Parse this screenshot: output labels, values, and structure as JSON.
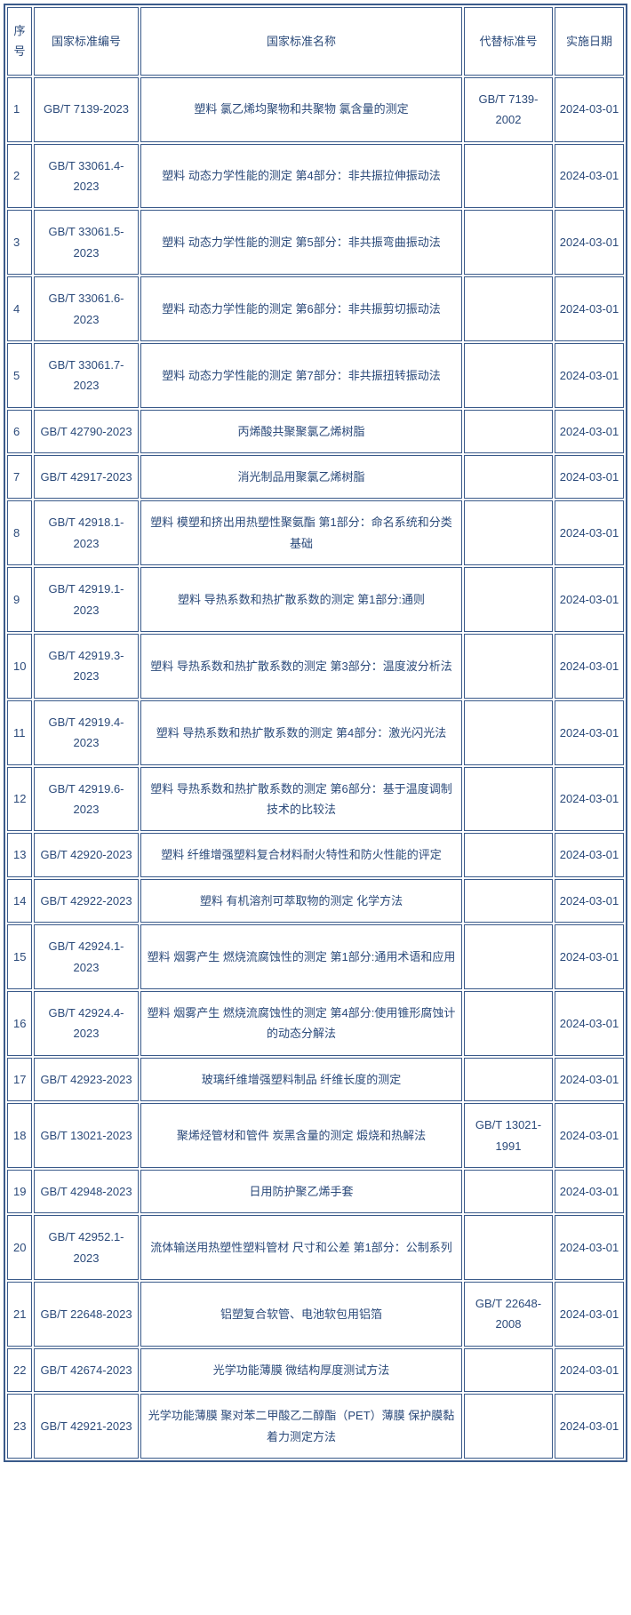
{
  "table": {
    "headers": {
      "seq": "序号",
      "code": "国家标准编号",
      "name": "国家标准名称",
      "replace": "代替标准号",
      "date": "实施日期"
    },
    "rows": [
      {
        "seq": "1",
        "code": "GB/T 7139-2023",
        "name": "塑料 氯乙烯均聚物和共聚物 氯含量的测定",
        "replace": "GB/T 7139-2002",
        "date": "2024-03-01"
      },
      {
        "seq": "2",
        "code": "GB/T 33061.4-2023",
        "name": "塑料 动态力学性能的测定 第4部分：非共振拉伸振动法",
        "replace": "",
        "date": "2024-03-01"
      },
      {
        "seq": "3",
        "code": "GB/T 33061.5-2023",
        "name": "塑料 动态力学性能的测定 第5部分：非共振弯曲振动法",
        "replace": "",
        "date": "2024-03-01"
      },
      {
        "seq": "4",
        "code": "GB/T 33061.6-2023",
        "name": "塑料 动态力学性能的测定 第6部分：非共振剪切振动法",
        "replace": "",
        "date": "2024-03-01"
      },
      {
        "seq": "5",
        "code": "GB/T 33061.7-2023",
        "name": "塑料 动态力学性能的测定 第7部分：非共振扭转振动法",
        "replace": "",
        "date": "2024-03-01"
      },
      {
        "seq": "6",
        "code": "GB/T 42790-2023",
        "name": "丙烯酸共聚聚氯乙烯树脂",
        "replace": "",
        "date": "2024-03-01"
      },
      {
        "seq": "7",
        "code": "GB/T 42917-2023",
        "name": "消光制品用聚氯乙烯树脂",
        "replace": "",
        "date": "2024-03-01"
      },
      {
        "seq": "8",
        "code": "GB/T 42918.1-2023",
        "name": "塑料 模塑和挤出用热塑性聚氨酯 第1部分：命名系统和分类基础",
        "replace": "",
        "date": "2024-03-01"
      },
      {
        "seq": "9",
        "code": "GB/T 42919.1-2023",
        "name": "塑料 导热系数和热扩散系数的测定 第1部分:通则",
        "replace": "",
        "date": "2024-03-01"
      },
      {
        "seq": "10",
        "code": "GB/T 42919.3-2023",
        "name": "塑料 导热系数和热扩散系数的测定 第3部分：温度波分析法",
        "replace": "",
        "date": "2024-03-01"
      },
      {
        "seq": "11",
        "code": "GB/T 42919.4-2023",
        "name": "塑料 导热系数和热扩散系数的测定 第4部分：激光闪光法",
        "replace": "",
        "date": "2024-03-01"
      },
      {
        "seq": "12",
        "code": "GB/T 42919.6-2023",
        "name": "塑料 导热系数和热扩散系数的测定 第6部分：基于温度调制技术的比较法",
        "replace": "",
        "date": "2024-03-01"
      },
      {
        "seq": "13",
        "code": "GB/T 42920-2023",
        "name": "塑料 纤维增强塑料复合材料耐火特性和防火性能的评定",
        "replace": "",
        "date": "2024-03-01"
      },
      {
        "seq": "14",
        "code": "GB/T 42922-2023",
        "name": "塑料 有机溶剂可萃取物的测定 化学方法",
        "replace": "",
        "date": "2024-03-01"
      },
      {
        "seq": "15",
        "code": "GB/T 42924.1-2023",
        "name": "塑料 烟雾产生 燃烧流腐蚀性的测定 第1部分:通用术语和应用",
        "replace": "",
        "date": "2024-03-01"
      },
      {
        "seq": "16",
        "code": "GB/T 42924.4-2023",
        "name": "塑料 烟雾产生 燃烧流腐蚀性的测定 第4部分:使用锥形腐蚀计的动态分解法",
        "replace": "",
        "date": "2024-03-01"
      },
      {
        "seq": "17",
        "code": "GB/T 42923-2023",
        "name": "玻璃纤维增强塑料制品 纤维长度的测定",
        "replace": "",
        "date": "2024-03-01"
      },
      {
        "seq": "18",
        "code": "GB/T 13021-2023",
        "name": "聚烯烃管材和管件 炭黑含量的测定 煅烧和热解法",
        "replace": "GB/T 13021-1991",
        "date": "2024-03-01"
      },
      {
        "seq": "19",
        "code": "GB/T 42948-2023",
        "name": "日用防护聚乙烯手套",
        "replace": "",
        "date": "2024-03-01"
      },
      {
        "seq": "20",
        "code": "GB/T 42952.1-2023",
        "name": "流体输送用热塑性塑料管材 尺寸和公差 第1部分：公制系列",
        "replace": "",
        "date": "2024-03-01"
      },
      {
        "seq": "21",
        "code": "GB/T 22648-2023",
        "name": "铝塑复合软管、电池软包用铝箔",
        "replace": "GB/T 22648-2008",
        "date": "2024-03-01"
      },
      {
        "seq": "22",
        "code": "GB/T 42674-2023",
        "name": "光学功能薄膜 微结构厚度测试方法",
        "replace": "",
        "date": "2024-03-01"
      },
      {
        "seq": "23",
        "code": "GB/T 42921-2023",
        "name": "光学功能薄膜 聚对苯二甲酸乙二醇酯（PET）薄膜 保护膜黏着力测定方法",
        "replace": "",
        "date": "2024-03-01"
      }
    ]
  },
  "styling": {
    "border_color": "#3a5a8a",
    "text_color": "#2b4a7a",
    "background_color": "#ffffff",
    "font_size": 13,
    "cell_padding": "12px 4px",
    "column_widths": {
      "seq": 28,
      "code": 118,
      "replace": 100,
      "date": 78
    }
  }
}
